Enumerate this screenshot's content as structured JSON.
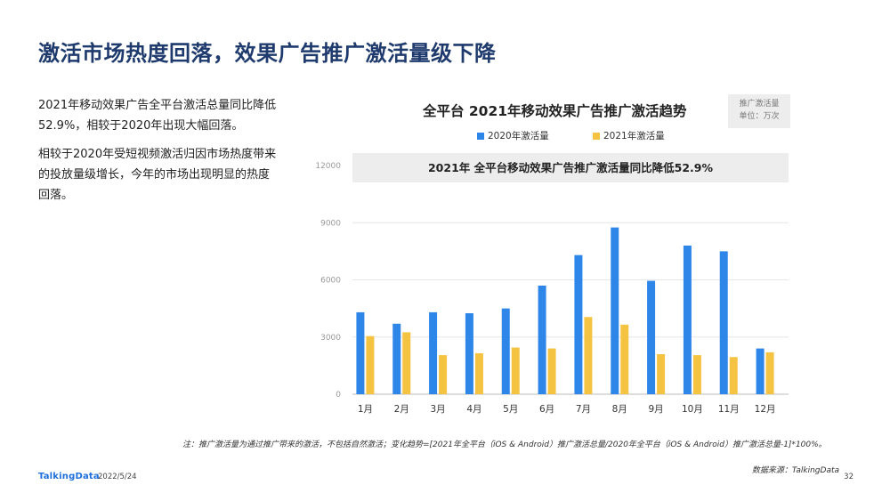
{
  "title": "激活市场热度回落，效果广告推广激活量级下降",
  "paragraphs": [
    "2021年移动效果广告全平台激活总量同比降低52.9%，相较于2020年出现大幅回落。",
    "相较于2020年受短视频激活归因市场热度带来的投放量级增长，今年的市场出现明显的热度回落。"
  ],
  "unit_box": {
    "line1": "推广激活量",
    "line2": "单位：万次"
  },
  "colors": {
    "series_2020": "#2e86e8",
    "series_2021": "#f5c342",
    "title": "#1f3b6e",
    "banner_bg": "#ededed"
  },
  "chart_data": {
    "type": "bar",
    "title": "全平台  2021年移动效果广告推广激活趋势",
    "subtitle": "2021年 全平台移动效果广告推广激活量同比降低52.9%",
    "categories": [
      "1月",
      "2月",
      "3月",
      "4月",
      "5月",
      "6月",
      "7月",
      "8月",
      "9月",
      "10月",
      "11月",
      "12月"
    ],
    "series": [
      {
        "name": "2020年激活量",
        "values": [
          4300,
          3700,
          4300,
          4250,
          4500,
          5700,
          7300,
          8750,
          5950,
          7800,
          7500,
          2400
        ]
      },
      {
        "name": "2021年激活量",
        "values": [
          3050,
          3250,
          2050,
          2150,
          2450,
          2400,
          4050,
          3650,
          2100,
          2050,
          1950,
          2200
        ]
      }
    ],
    "yticks": [
      0,
      3000,
      6000,
      9000,
      12000
    ],
    "ylim": [
      0,
      12000
    ],
    "xlabel": "",
    "ylabel": ""
  },
  "note": "注：推广激活量为通过推广带来的激活，不包括自然激活；变化趋势=[2021年全平台（iOS & Android）推广激活总量/2020年全平台（iOS & Android）推广激活总量-1]*100%。",
  "source": "数据来源：TalkingData",
  "footer": {
    "logo": "TalkingData",
    "date": "2022/5/24",
    "page": "32"
  }
}
